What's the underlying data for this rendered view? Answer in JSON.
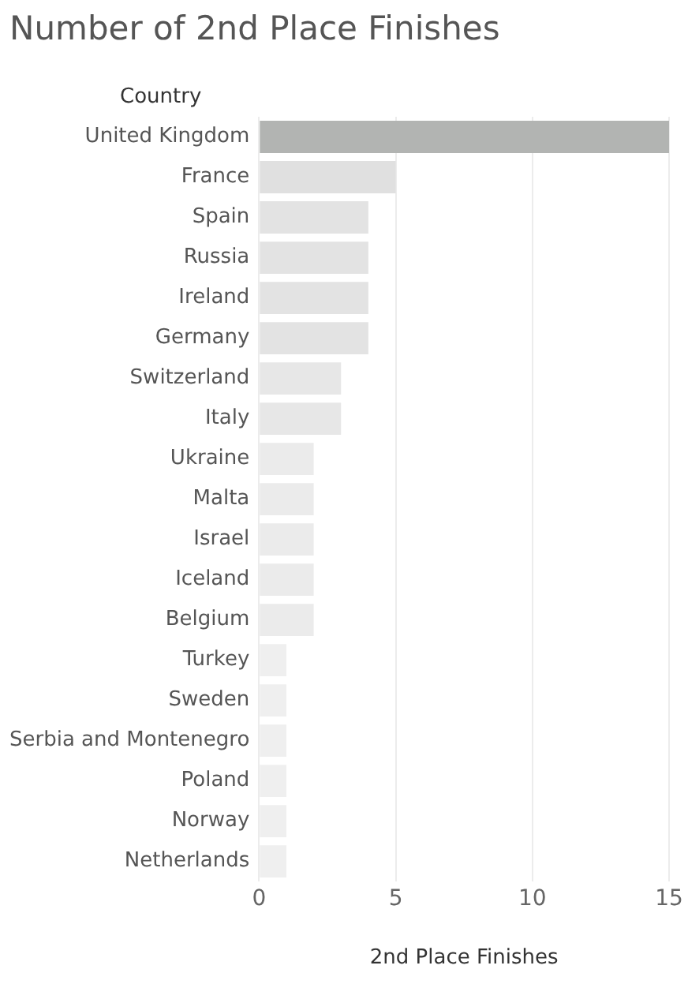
{
  "chart_data": {
    "type": "bar",
    "orientation": "horizontal",
    "title": "Number of 2nd Place Finishes",
    "ylabel": "Country",
    "xlabel": "2nd Place Finishes",
    "categories": [
      "United Kingdom",
      "France",
      "Spain",
      "Russia",
      "Ireland",
      "Germany",
      "Switzerland",
      "Italy",
      "Ukraine",
      "Malta",
      "Israel",
      "Iceland",
      "Belgium",
      "Turkey",
      "Sweden",
      "Serbia and Montenegro",
      "Poland",
      "Norway",
      "Netherlands"
    ],
    "values": [
      15,
      5,
      4,
      4,
      4,
      4,
      3,
      3,
      2,
      2,
      2,
      2,
      2,
      1,
      1,
      1,
      1,
      1,
      1
    ],
    "colors": [
      "#b2b4b2",
      "#e0e0e0",
      "#e3e3e3",
      "#e3e3e3",
      "#e3e3e3",
      "#e3e3e3",
      "#e7e7e7",
      "#e7e7e7",
      "#ebebeb",
      "#ebebeb",
      "#ebebeb",
      "#ebebeb",
      "#ebebeb",
      "#efefef",
      "#efefef",
      "#efefef",
      "#efefef",
      "#efefef",
      "#efefef"
    ],
    "xlim": [
      0,
      15
    ],
    "xticks": [
      0,
      5,
      10,
      15
    ],
    "grid": "x",
    "legend": false
  }
}
